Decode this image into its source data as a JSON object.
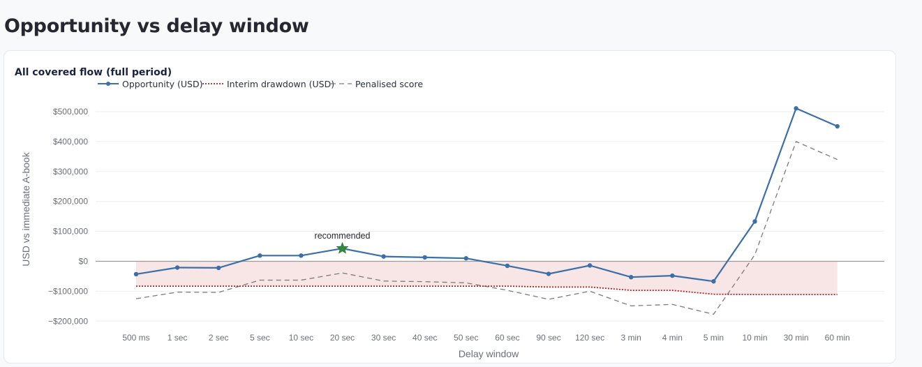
{
  "page": {
    "title": "Opportunity vs delay window"
  },
  "chart_data": {
    "type": "line",
    "title": "All covered flow (full period)",
    "xlabel": "Delay window",
    "ylabel": "USD vs immediate A-book",
    "ylim": [
      -225000,
      540000
    ],
    "yticks": [
      -200000,
      -100000,
      0,
      100000,
      200000,
      300000,
      400000,
      500000
    ],
    "ytick_labels": [
      "−$200,000",
      "−$100,000",
      "$0",
      "$100,000",
      "$200,000",
      "$300,000",
      "$400,000",
      "$500,000"
    ],
    "grid": true,
    "legend_position": "top-left",
    "categories": [
      "500 ms",
      "1 sec",
      "2 sec",
      "5 sec",
      "10 sec",
      "20 sec",
      "30 sec",
      "40 sec",
      "50 sec",
      "60 sec",
      "90 sec",
      "120 sec",
      "3 min",
      "4 min",
      "5 min",
      "10 min",
      "30 min",
      "60 min"
    ],
    "series": [
      {
        "name": "Opportunity (USD)",
        "style": "solid-markers",
        "color": "#3a6fa8",
        "values": [
          -43000,
          -21000,
          -22000,
          19000,
          19000,
          43000,
          16000,
          13000,
          10000,
          -15000,
          -42000,
          -14000,
          -53000,
          -48000,
          -67000,
          133000,
          511000,
          451000
        ]
      },
      {
        "name": "Interim drawdown (USD)",
        "style": "dotted",
        "color": "#b22222",
        "values": [
          -83000,
          -83000,
          -83000,
          -83000,
          -83000,
          -83000,
          -83000,
          -83000,
          -83000,
          -83000,
          -86000,
          -86000,
          -97000,
          -97000,
          -110000,
          -111000,
          -111000,
          -111000
        ]
      },
      {
        "name": "Penalised score",
        "style": "dashed",
        "color": "#7a7a7a",
        "values": [
          -125000,
          -103000,
          -104000,
          -63000,
          -63000,
          -39000,
          -66000,
          -68000,
          -72000,
          -97000,
          -127000,
          -100000,
          -149000,
          -144000,
          -177000,
          22000,
          400000,
          340000
        ]
      }
    ],
    "drawdown_band": {
      "color": "#f8e6e6"
    },
    "annotation": {
      "category": "20 sec",
      "value": 43000,
      "text": "recommended",
      "marker": "star",
      "color": "#2e8b3a"
    }
  }
}
